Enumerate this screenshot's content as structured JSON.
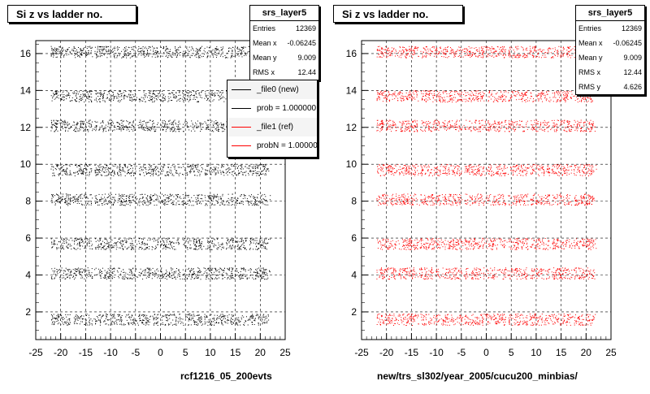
{
  "chart_data": [
    {
      "type": "scatter",
      "title": "Si z vs ladder no.",
      "xlabel": "rcf1216_05_200evts",
      "ylabel": "",
      "xlim": [
        -25,
        25
      ],
      "ylim": [
        0.5,
        16.7
      ],
      "xticks": [
        -25,
        -20,
        -15,
        -10,
        -5,
        0,
        5,
        10,
        15,
        20,
        25
      ],
      "yticks": [
        2,
        4,
        6,
        8,
        10,
        12,
        14,
        16
      ],
      "grid": true,
      "color": "#000000",
      "ladders": [
        1.6,
        4.1,
        5.7,
        8.1,
        9.7,
        12.1,
        13.7,
        16.1
      ],
      "x_range": [
        -22,
        22
      ],
      "stats": {
        "name": "srs_layer5",
        "rows": [
          {
            "label": "Entries",
            "value": "12369"
          },
          {
            "label": "Mean x",
            "value": "-0.06245"
          },
          {
            "label": "Mean y",
            "value": "9.009"
          },
          {
            "label": "RMS x",
            "value": "12.44"
          }
        ]
      },
      "legend": {
        "placement": "top-right",
        "entries": [
          {
            "label": "_file0 (new)",
            "color": "#000000"
          },
          {
            "label": "prob = 1.000000",
            "color": "#000000"
          },
          {
            "label": "_file1 (ref)",
            "color": "#ff0000"
          },
          {
            "label": "probN = 1.000000",
            "color": "#ff0000"
          }
        ]
      }
    },
    {
      "type": "scatter",
      "title": "Si z vs ladder no.",
      "xlabel": "new/trs_sl302/year_2005/cucu200_minbias/",
      "ylabel": "",
      "xlim": [
        -25,
        25
      ],
      "ylim": [
        0.5,
        16.7
      ],
      "xticks": [
        -25,
        -20,
        -15,
        -10,
        -5,
        0,
        5,
        10,
        15,
        20,
        25
      ],
      "yticks": [
        2,
        4,
        6,
        8,
        10,
        12,
        14,
        16
      ],
      "grid": true,
      "color": "#ff0000",
      "ladders": [
        1.6,
        4.1,
        5.7,
        8.1,
        9.7,
        12.1,
        13.7,
        16.1
      ],
      "x_range": [
        -22,
        22
      ],
      "stats": {
        "name": "srs_layer5",
        "rows": [
          {
            "label": "Entries",
            "value": "12369"
          },
          {
            "label": "Mean x",
            "value": "-0.06245"
          },
          {
            "label": "Mean y",
            "value": "9.009"
          },
          {
            "label": "RMS x",
            "value": "12.44"
          },
          {
            "label": "RMS y",
            "value": "4.626"
          }
        ]
      }
    }
  ]
}
